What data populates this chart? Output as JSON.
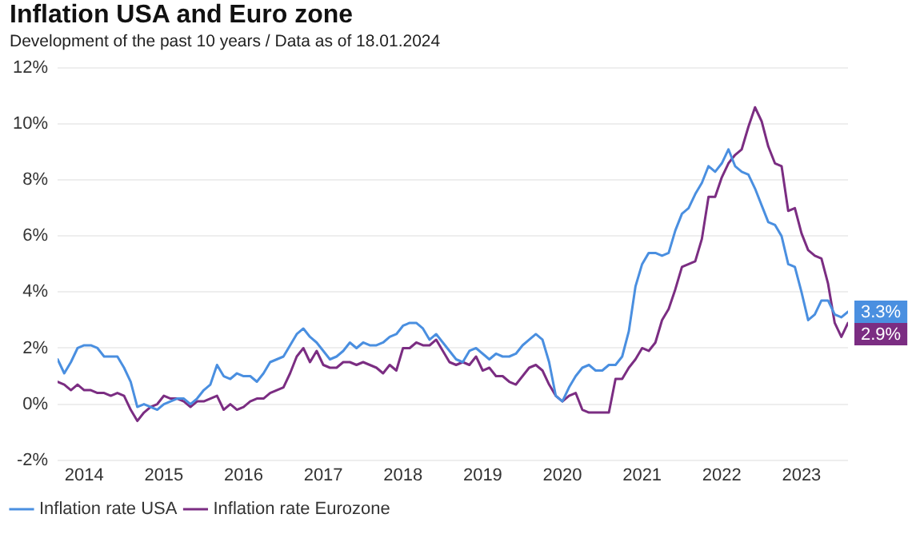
{
  "chart_data": {
    "type": "line",
    "title": "Inflation USA and Euro zone",
    "subtitle": "Development of the past 10 years / Data as of 18.01.2024",
    "x": [
      "2014-01",
      "2014-02",
      "2014-03",
      "2014-04",
      "2014-05",
      "2014-06",
      "2014-07",
      "2014-08",
      "2014-09",
      "2014-10",
      "2014-11",
      "2014-12",
      "2015-01",
      "2015-02",
      "2015-03",
      "2015-04",
      "2015-05",
      "2015-06",
      "2015-07",
      "2015-08",
      "2015-09",
      "2015-10",
      "2015-11",
      "2015-12",
      "2016-01",
      "2016-02",
      "2016-03",
      "2016-04",
      "2016-05",
      "2016-06",
      "2016-07",
      "2016-08",
      "2016-09",
      "2016-10",
      "2016-11",
      "2016-12",
      "2017-01",
      "2017-02",
      "2017-03",
      "2017-04",
      "2017-05",
      "2017-06",
      "2017-07",
      "2017-08",
      "2017-09",
      "2017-10",
      "2017-11",
      "2017-12",
      "2018-01",
      "2018-02",
      "2018-03",
      "2018-04",
      "2018-05",
      "2018-06",
      "2018-07",
      "2018-08",
      "2018-09",
      "2018-10",
      "2018-11",
      "2018-12",
      "2019-01",
      "2019-02",
      "2019-03",
      "2019-04",
      "2019-05",
      "2019-06",
      "2019-07",
      "2019-08",
      "2019-09",
      "2019-10",
      "2019-11",
      "2019-12",
      "2020-01",
      "2020-02",
      "2020-03",
      "2020-04",
      "2020-05",
      "2020-06",
      "2020-07",
      "2020-08",
      "2020-09",
      "2020-10",
      "2020-11",
      "2020-12",
      "2021-01",
      "2021-02",
      "2021-03",
      "2021-04",
      "2021-05",
      "2021-06",
      "2021-07",
      "2021-08",
      "2021-09",
      "2021-10",
      "2021-11",
      "2021-12",
      "2022-01",
      "2022-02",
      "2022-03",
      "2022-04",
      "2022-05",
      "2022-06",
      "2022-07",
      "2022-08",
      "2022-09",
      "2022-10",
      "2022-11",
      "2022-12",
      "2023-01",
      "2023-02",
      "2023-03",
      "2023-04",
      "2023-05",
      "2023-06",
      "2023-07",
      "2023-08",
      "2023-09",
      "2023-10",
      "2023-11",
      "2023-12"
    ],
    "series": [
      {
        "name": "Inflation rate USA",
        "color": "#4a8fe0",
        "values": [
          1.6,
          1.1,
          1.5,
          2.0,
          2.1,
          2.1,
          2.0,
          1.7,
          1.7,
          1.7,
          1.3,
          0.8,
          -0.1,
          0.0,
          -0.1,
          -0.2,
          0.0,
          0.1,
          0.2,
          0.2,
          0.0,
          0.2,
          0.5,
          0.7,
          1.4,
          1.0,
          0.9,
          1.1,
          1.0,
          1.0,
          0.8,
          1.1,
          1.5,
          1.6,
          1.7,
          2.1,
          2.5,
          2.7,
          2.4,
          2.2,
          1.9,
          1.6,
          1.7,
          1.9,
          2.2,
          2.0,
          2.2,
          2.1,
          2.1,
          2.2,
          2.4,
          2.5,
          2.8,
          2.9,
          2.9,
          2.7,
          2.3,
          2.5,
          2.2,
          1.9,
          1.6,
          1.5,
          1.9,
          2.0,
          1.8,
          1.6,
          1.8,
          1.7,
          1.7,
          1.8,
          2.1,
          2.3,
          2.5,
          2.3,
          1.5,
          0.3,
          0.1,
          0.6,
          1.0,
          1.3,
          1.4,
          1.2,
          1.2,
          1.4,
          1.4,
          1.7,
          2.6,
          4.2,
          5.0,
          5.4,
          5.4,
          5.3,
          5.4,
          6.2,
          6.8,
          7.0,
          7.5,
          7.9,
          8.5,
          8.3,
          8.6,
          9.1,
          8.5,
          8.3,
          8.2,
          7.7,
          7.1,
          6.5,
          6.4,
          6.0,
          5.0,
          4.9,
          4.0,
          3.0,
          3.2,
          3.7,
          3.7,
          3.2,
          3.1,
          3.3
        ],
        "value_labels": [
          null,
          null,
          null,
          null,
          null,
          null,
          null,
          null,
          null,
          null,
          null,
          null,
          null,
          null,
          null,
          null,
          null,
          null,
          null,
          null,
          null,
          null,
          null,
          null,
          null,
          null,
          null,
          null,
          null,
          null,
          null,
          null,
          null,
          null,
          null,
          null,
          null,
          null,
          null,
          null,
          null,
          null,
          null,
          null,
          null,
          null,
          null,
          null,
          null,
          null,
          null,
          null,
          null,
          null,
          null,
          null,
          null,
          null,
          null,
          null,
          null,
          null,
          null,
          null,
          null,
          null,
          null,
          null,
          null,
          null,
          null,
          null,
          null,
          null,
          null,
          null,
          null,
          null,
          null,
          null,
          null,
          null,
          null,
          null,
          null,
          null,
          null,
          null,
          null,
          null,
          null,
          null,
          null,
          null,
          null,
          null,
          null,
          null,
          null,
          null,
          null,
          null,
          null,
          null,
          null,
          null,
          null,
          null,
          null,
          null,
          null,
          null,
          null,
          null,
          null,
          null,
          null,
          null,
          null,
          "3.3%"
        ]
      },
      {
        "name": "Inflation rate Eurozone",
        "color": "#7b2d82",
        "values": [
          0.8,
          0.7,
          0.5,
          0.7,
          0.5,
          0.5,
          0.4,
          0.4,
          0.3,
          0.4,
          0.3,
          -0.2,
          -0.6,
          -0.3,
          -0.1,
          0.0,
          0.3,
          0.2,
          0.2,
          0.1,
          -0.1,
          0.1,
          0.1,
          0.2,
          0.3,
          -0.2,
          0.0,
          -0.2,
          -0.1,
          0.1,
          0.2,
          0.2,
          0.4,
          0.5,
          0.6,
          1.1,
          1.7,
          2.0,
          1.5,
          1.9,
          1.4,
          1.3,
          1.3,
          1.5,
          1.5,
          1.4,
          1.5,
          1.4,
          1.3,
          1.1,
          1.4,
          1.2,
          2.0,
          2.0,
          2.2,
          2.1,
          2.1,
          2.3,
          1.9,
          1.5,
          1.4,
          1.5,
          1.4,
          1.7,
          1.2,
          1.3,
          1.0,
          1.0,
          0.8,
          0.7,
          1.0,
          1.3,
          1.4,
          1.2,
          0.7,
          0.3,
          0.1,
          0.3,
          0.4,
          -0.2,
          -0.3,
          -0.3,
          -0.3,
          -0.3,
          0.9,
          0.9,
          1.3,
          1.6,
          2.0,
          1.9,
          2.2,
          3.0,
          3.4,
          4.1,
          4.9,
          5.0,
          5.1,
          5.9,
          7.4,
          7.4,
          8.1,
          8.6,
          8.9,
          9.1,
          9.9,
          10.6,
          10.1,
          9.2,
          8.6,
          8.5,
          6.9,
          7.0,
          6.1,
          5.5,
          5.3,
          5.2,
          4.3,
          2.9,
          2.4,
          2.9
        ],
        "value_labels": [
          null,
          null,
          null,
          null,
          null,
          null,
          null,
          null,
          null,
          null,
          null,
          null,
          null,
          null,
          null,
          null,
          null,
          null,
          null,
          null,
          null,
          null,
          null,
          null,
          null,
          null,
          null,
          null,
          null,
          null,
          null,
          null,
          null,
          null,
          null,
          null,
          null,
          null,
          null,
          null,
          null,
          null,
          null,
          null,
          null,
          null,
          null,
          null,
          null,
          null,
          null,
          null,
          null,
          null,
          null,
          null,
          null,
          null,
          null,
          null,
          null,
          null,
          null,
          null,
          null,
          null,
          null,
          null,
          null,
          null,
          null,
          null,
          null,
          null,
          null,
          null,
          null,
          null,
          null,
          null,
          null,
          null,
          null,
          null,
          null,
          null,
          null,
          null,
          null,
          null,
          null,
          null,
          null,
          null,
          null,
          null,
          null,
          null,
          null,
          null,
          null,
          null,
          null,
          null,
          null,
          null,
          null,
          null,
          null,
          null,
          null,
          null,
          null,
          null,
          null,
          null,
          null,
          null,
          null,
          "2.9%"
        ]
      }
    ],
    "xlim": [
      "2014-01",
      "2023-12"
    ],
    "xticks": [
      {
        "value": "2014-05",
        "label": "2014"
      },
      {
        "value": "2015-05",
        "label": "2015"
      },
      {
        "value": "2016-05",
        "label": "2016"
      },
      {
        "value": "2017-05",
        "label": "2017"
      },
      {
        "value": "2018-05",
        "label": "2018"
      },
      {
        "value": "2019-05",
        "label": "2019"
      },
      {
        "value": "2020-05",
        "label": "2020"
      },
      {
        "value": "2021-05",
        "label": "2021"
      },
      {
        "value": "2022-05",
        "label": "2022"
      },
      {
        "value": "2023-05",
        "label": "2023"
      }
    ],
    "ylim": [
      -2,
      12
    ],
    "yticks": [
      {
        "value": -2,
        "label": "-2%"
      },
      {
        "value": 0,
        "label": "0%"
      },
      {
        "value": 2,
        "label": "2%"
      },
      {
        "value": 4,
        "label": "4%"
      },
      {
        "value": 6,
        "label": "6%"
      },
      {
        "value": 8,
        "label": "8%"
      },
      {
        "value": 10,
        "label": "10%"
      },
      {
        "value": 12,
        "label": "12%"
      }
    ],
    "grid": "y",
    "legend": "bottom left",
    "marker": "none",
    "line_style": "solid"
  }
}
